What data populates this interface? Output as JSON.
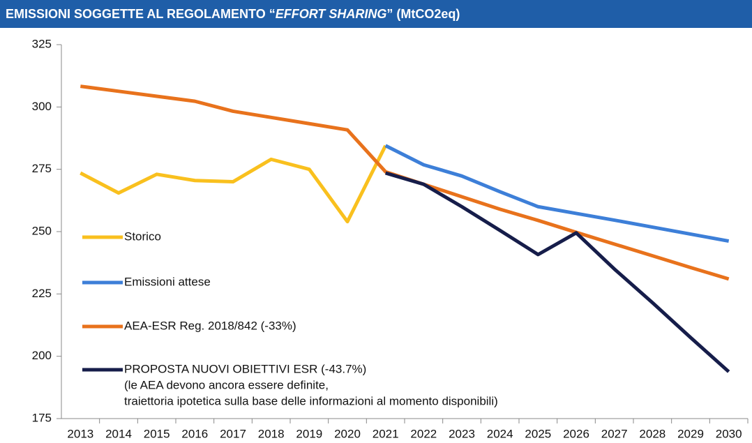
{
  "chart_data": {
    "type": "line",
    "title": [
      "EMISSIONI SOGGETTE AL REGOLAMENTO “",
      "EFFORT SHARING",
      "” (MtCO2eq)"
    ],
    "categories": [
      "2013",
      "2014",
      "2015",
      "2016",
      "2017",
      "2018",
      "2019",
      "2020",
      "2021",
      "2022",
      "2023",
      "2024",
      "2025",
      "2026",
      "2027",
      "2028",
      "2029",
      "2030"
    ],
    "series": [
      {
        "name": "Storico",
        "color": "#f9c01e",
        "values": [
          273.5,
          265.5,
          273,
          270.5,
          270,
          279,
          275,
          254,
          284.5,
          null,
          null,
          null,
          null,
          null,
          null,
          null,
          null,
          null
        ]
      },
      {
        "name": "Emissioni attese",
        "color": "#3d7fd8",
        "values": [
          null,
          null,
          null,
          null,
          null,
          null,
          null,
          null,
          284.5,
          276.8,
          272.3,
          266,
          260,
          257.3,
          254.6,
          251.8,
          249,
          246.2
        ]
      },
      {
        "name": "AEA-ESR Reg. 2018/842 (-33%)",
        "color": "#e8721c",
        "values": [
          308.3,
          306.3,
          304.3,
          302.3,
          298.3,
          295.8,
          293.3,
          290.8,
          274,
          269,
          264,
          259,
          254.5,
          249.7,
          245,
          240.3,
          235.6,
          231
        ]
      },
      {
        "name": "PROPOSTA NUOVI OBIETTIVI ESR (-43.7%)",
        "color": "#161d4a",
        "values": [
          null,
          null,
          null,
          null,
          null,
          null,
          null,
          null,
          273.5,
          269,
          260,
          250.5,
          240.8,
          249.5,
          235,
          221.5,
          207.5,
          193.8
        ]
      }
    ],
    "legend_note": [
      "(le AEA devono ancora essere definite,",
      "traiettoria ipotetica sulla base delle informazioni al momento disponibili)"
    ],
    "ylim": [
      175,
      325
    ],
    "yticks": [
      175,
      200,
      225,
      250,
      275,
      300,
      325
    ],
    "grid": false,
    "legend": "left"
  }
}
